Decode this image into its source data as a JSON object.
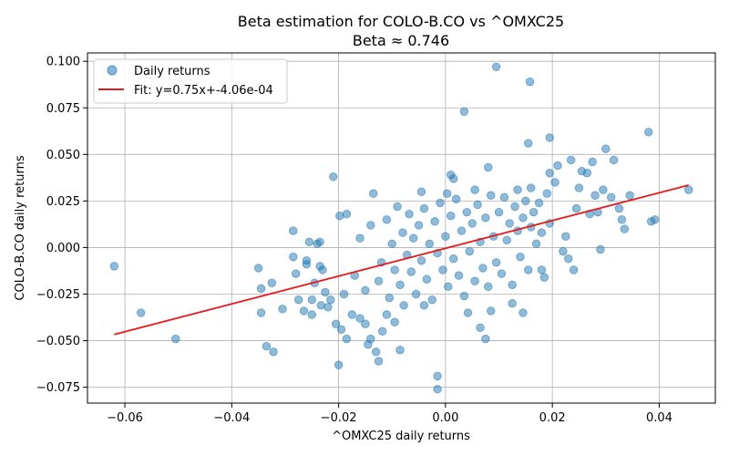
{
  "chart_data": {
    "type": "scatter",
    "title": "Beta estimation for COLO-B.CO vs ^OMXC25",
    "subtitle": "Beta ≈ 0.746",
    "xlabel": "^OMXC25 daily returns",
    "ylabel": "COLO-B.CO daily returns",
    "xlim": [
      -0.067,
      0.0505
    ],
    "ylim": [
      -0.0835,
      0.1045
    ],
    "x_ticks": [
      -0.06,
      -0.04,
      -0.02,
      0.0,
      0.02,
      0.04
    ],
    "x_tick_labels": [
      "−0.06",
      "−0.04",
      "−0.02",
      "0.00",
      "0.02",
      "0.04"
    ],
    "y_ticks": [
      -0.075,
      -0.05,
      -0.025,
      0.0,
      0.025,
      0.05,
      0.075,
      0.1
    ],
    "y_tick_labels": [
      "−0.075",
      "−0.050",
      "−0.025",
      "0.000",
      "0.025",
      "0.050",
      "0.075",
      "0.100"
    ],
    "grid": true,
    "legend_position": "top-left",
    "colors": {
      "points": "#1f77b4",
      "fit": "#e41a1c"
    },
    "series": [
      {
        "name": "Daily returns",
        "points": [
          [
            -0.062,
            -0.01
          ],
          [
            -0.057,
            -0.035
          ],
          [
            -0.0505,
            -0.049
          ],
          [
            -0.035,
            -0.011
          ],
          [
            -0.0345,
            -0.022
          ],
          [
            -0.0345,
            -0.035
          ],
          [
            -0.0335,
            -0.053
          ],
          [
            -0.0325,
            -0.019
          ],
          [
            -0.0322,
            -0.056
          ],
          [
            -0.0305,
            -0.033
          ],
          [
            -0.0285,
            0.009
          ],
          [
            -0.0285,
            -0.005
          ],
          [
            -0.028,
            -0.014
          ],
          [
            -0.0275,
            -0.028
          ],
          [
            -0.0265,
            -0.034
          ],
          [
            -0.026,
            -0.009
          ],
          [
            -0.026,
            -0.007
          ],
          [
            -0.0255,
            0.003
          ],
          [
            -0.025,
            -0.028
          ],
          [
            -0.025,
            -0.036
          ],
          [
            -0.0245,
            -0.019
          ],
          [
            -0.024,
            0.002
          ],
          [
            -0.0235,
            0.003
          ],
          [
            -0.0235,
            -0.01
          ],
          [
            -0.0233,
            -0.031
          ],
          [
            -0.023,
            -0.012
          ],
          [
            -0.0225,
            -0.024
          ],
          [
            -0.022,
            -0.032
          ],
          [
            -0.0215,
            -0.028
          ],
          [
            -0.021,
            0.038
          ],
          [
            -0.0205,
            -0.041
          ],
          [
            -0.02,
            -0.063
          ],
          [
            -0.0198,
            0.017
          ],
          [
            -0.0195,
            -0.044
          ],
          [
            -0.019,
            -0.025
          ],
          [
            -0.0185,
            -0.049
          ],
          [
            -0.0175,
            -0.036
          ],
          [
            -0.016,
            -0.038
          ],
          [
            -0.015,
            -0.041
          ],
          [
            -0.0145,
            -0.052
          ],
          [
            -0.014,
            -0.049
          ],
          [
            -0.0135,
            0.029
          ],
          [
            -0.013,
            -0.056
          ],
          [
            -0.0125,
            -0.061
          ],
          [
            -0.0118,
            -0.045
          ],
          [
            -0.011,
            -0.036
          ],
          [
            -0.0095,
            -0.04
          ],
          [
            -0.0085,
            -0.055
          ],
          [
            -0.0045,
            0.03
          ],
          [
            -0.004,
            -0.031
          ],
          [
            -0.0015,
            -0.076
          ],
          [
            -0.0015,
            -0.069
          ],
          [
            0.0003,
            0.029
          ],
          [
            0.001,
            0.039
          ],
          [
            0.0015,
            0.037
          ],
          [
            0.0035,
            0.073
          ],
          [
            0.0042,
            -0.035
          ],
          [
            0.0055,
            0.031
          ],
          [
            0.0065,
            -0.043
          ],
          [
            0.0075,
            -0.049
          ],
          [
            0.008,
            0.043
          ],
          [
            0.0085,
            -0.034
          ],
          [
            0.0095,
            0.097
          ],
          [
            0.0125,
            -0.03
          ],
          [
            0.0135,
            0.031
          ],
          [
            0.0145,
            -0.035
          ],
          [
            0.0155,
            0.056
          ],
          [
            0.0158,
            0.089
          ],
          [
            0.016,
            0.032
          ],
          [
            0.018,
            -0.012
          ],
          [
            0.0195,
            0.059
          ],
          [
            0.0195,
            0.04
          ],
          [
            0.0205,
            0.035
          ],
          [
            0.021,
            0.044
          ],
          [
            0.022,
            -0.002
          ],
          [
            0.0225,
            0.006
          ],
          [
            0.023,
            -0.006
          ],
          [
            0.0235,
            0.047
          ],
          [
            0.024,
            -0.012
          ],
          [
            0.0245,
            0.021
          ],
          [
            0.025,
            0.032
          ],
          [
            0.0255,
            0.041
          ],
          [
            0.0265,
            0.04
          ],
          [
            0.027,
            0.018
          ],
          [
            0.0275,
            0.046
          ],
          [
            0.028,
            0.028
          ],
          [
            0.0285,
            0.019
          ],
          [
            0.029,
            -0.001
          ],
          [
            0.0295,
            0.031
          ],
          [
            0.03,
            0.053
          ],
          [
            0.031,
            0.027
          ],
          [
            0.0315,
            0.047
          ],
          [
            0.0325,
            0.021
          ],
          [
            0.033,
            0.015
          ],
          [
            0.0335,
            0.01
          ],
          [
            0.0345,
            0.028
          ],
          [
            0.038,
            0.062
          ],
          [
            0.0385,
            0.014
          ],
          [
            0.0392,
            0.015
          ],
          [
            0.0455,
            0.031
          ],
          [
            -0.0185,
            0.018
          ],
          [
            -0.017,
            -0.015
          ],
          [
            -0.016,
            0.005
          ],
          [
            -0.015,
            -0.023
          ],
          [
            -0.014,
            0.012
          ],
          [
            -0.0125,
            -0.018
          ],
          [
            -0.012,
            -0.008
          ],
          [
            -0.011,
            0.015
          ],
          [
            -0.0105,
            -0.027
          ],
          [
            -0.01,
            0.002
          ],
          [
            -0.0095,
            -0.012
          ],
          [
            -0.009,
            0.022
          ],
          [
            -0.0085,
            -0.02
          ],
          [
            -0.008,
            0.008
          ],
          [
            -0.0078,
            -0.031
          ],
          [
            -0.0072,
            -0.004
          ],
          [
            -0.0068,
            0.018
          ],
          [
            -0.0064,
            -0.013
          ],
          [
            -0.006,
            0.005
          ],
          [
            -0.0055,
            -0.025
          ],
          [
            -0.005,
            0.012
          ],
          [
            -0.0045,
            -0.007
          ],
          [
            -0.004,
            0.021
          ],
          [
            -0.0035,
            -0.017
          ],
          [
            -0.003,
            0.002
          ],
          [
            -0.0025,
            -0.028
          ],
          [
            -0.002,
            0.014
          ],
          [
            -0.0015,
            -0.003
          ],
          [
            -0.001,
            0.024
          ],
          [
            -0.0005,
            -0.012
          ],
          [
            0.0,
            0.006
          ],
          [
            0.0005,
            -0.021
          ],
          [
            0.001,
            0.017
          ],
          [
            0.0015,
            -0.006
          ],
          [
            0.002,
            0.026
          ],
          [
            0.0025,
            -0.015
          ],
          [
            0.003,
            0.009
          ],
          [
            0.0035,
            -0.026
          ],
          [
            0.004,
            0.019
          ],
          [
            0.0045,
            -0.002
          ],
          [
            0.005,
            0.013
          ],
          [
            0.0055,
            -0.018
          ],
          [
            0.006,
            0.023
          ],
          [
            0.0065,
            0.003
          ],
          [
            0.007,
            -0.011
          ],
          [
            0.0075,
            0.016
          ],
          [
            0.008,
            -0.021
          ],
          [
            0.0085,
            0.028
          ],
          [
            0.009,
            0.006
          ],
          [
            0.0095,
            -0.008
          ],
          [
            0.01,
            0.019
          ],
          [
            0.0105,
            -0.014
          ],
          [
            0.011,
            0.027
          ],
          [
            0.0115,
            0.004
          ],
          [
            0.012,
            0.013
          ],
          [
            0.0125,
            -0.02
          ],
          [
            0.013,
            0.022
          ],
          [
            0.0135,
            0.009
          ],
          [
            0.014,
            -0.005
          ],
          [
            0.0145,
            0.016
          ],
          [
            0.015,
            0.025
          ],
          [
            0.0155,
            -0.012
          ],
          [
            0.016,
            0.011
          ],
          [
            0.0165,
            0.019
          ],
          [
            0.017,
            0.002
          ],
          [
            0.0175,
            0.024
          ],
          [
            0.018,
            0.008
          ],
          [
            0.0185,
            -0.016
          ],
          [
            0.019,
            0.029
          ],
          [
            0.0195,
            0.013
          ]
        ]
      }
    ],
    "fit": {
      "name": "Fit: y=0.75x+-4.06e-04",
      "slope": 0.746,
      "intercept": -0.000406,
      "x_range": [
        -0.062,
        0.0455
      ]
    }
  }
}
